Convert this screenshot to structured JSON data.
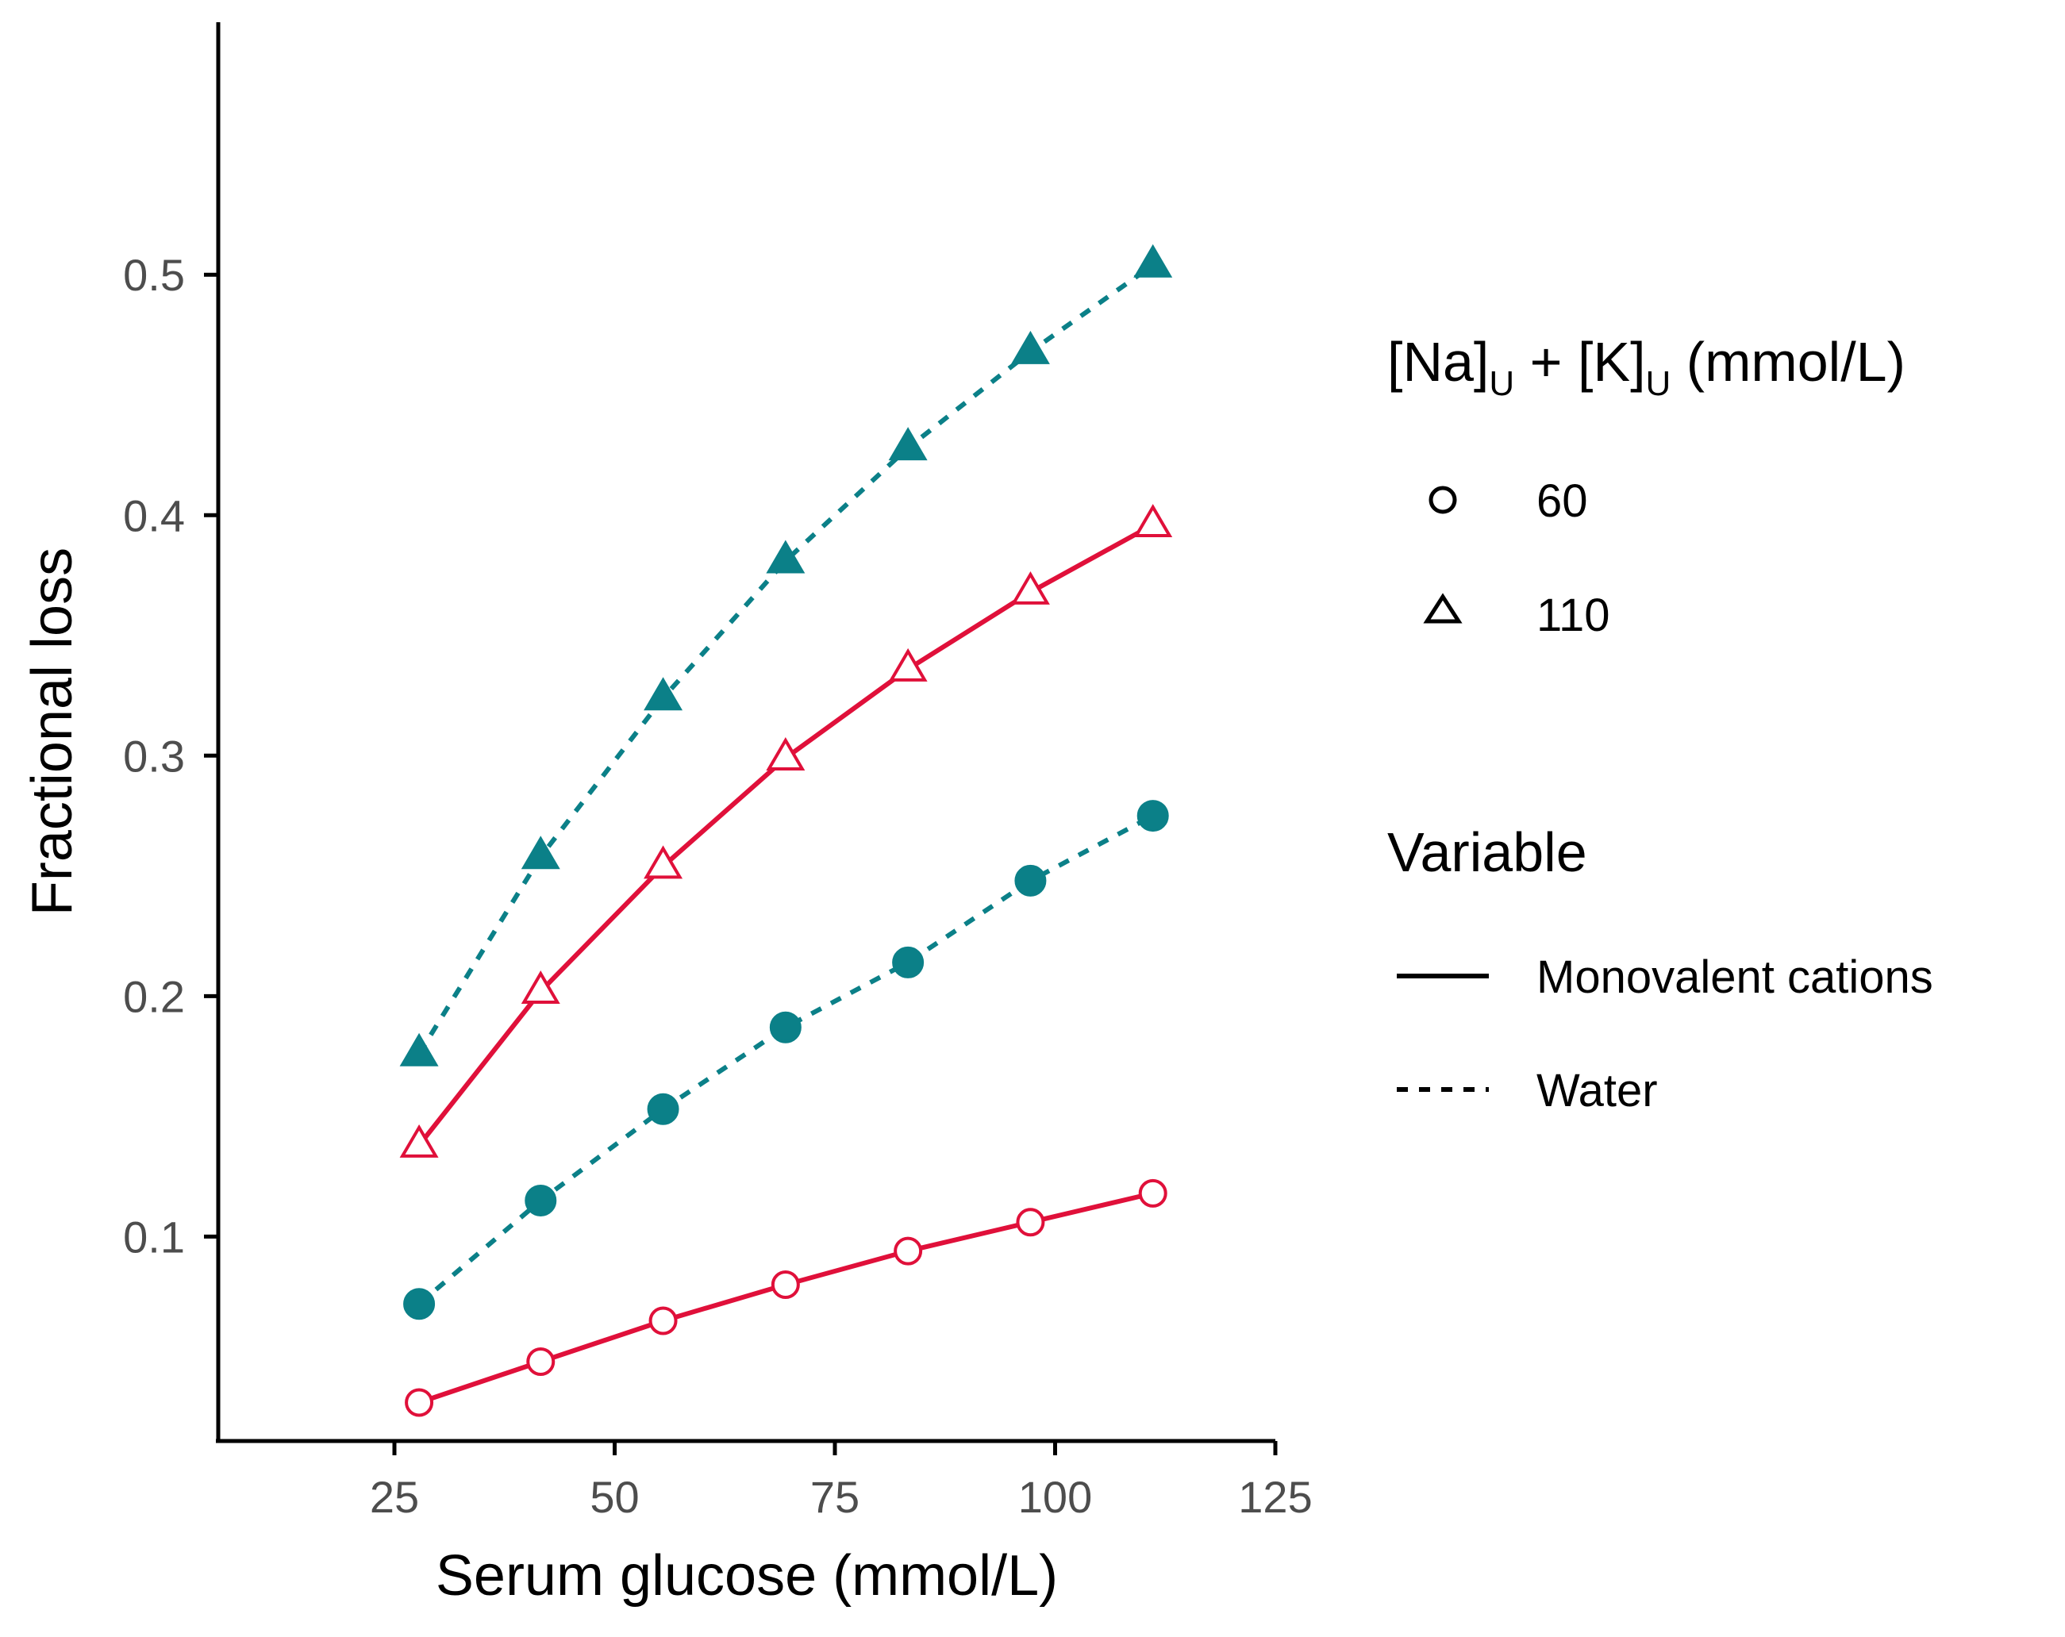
{
  "chart_data": {
    "type": "line",
    "xlabel": "Serum glucose (mmol/L)",
    "ylabel": "Fractional loss",
    "xlim": [
      5,
      125
    ],
    "ylim": [
      0.015,
      0.605
    ],
    "x_ticks": [
      25,
      50,
      75,
      100,
      125
    ],
    "y_ticks": [
      0.1,
      0.2,
      0.3,
      0.4,
      0.5
    ],
    "x_tick_labels": [
      "25",
      "50",
      "75",
      "100",
      "125"
    ],
    "y_tick_labels": [
      "0.1",
      "0.2",
      "0.3",
      "0.4",
      "0.5"
    ],
    "grid": false,
    "x": [
      27.8,
      41.6,
      55.5,
      69.4,
      83.3,
      97.2,
      111.1
    ],
    "series": [
      {
        "name": "Water, 110",
        "variable": "Water",
        "concentration": "110",
        "values": [
          0.176,
          0.258,
          0.324,
          0.381,
          0.428,
          0.468,
          0.504
        ]
      },
      {
        "name": "Monovalent cations, 110",
        "variable": "Monovalent cations",
        "concentration": "110",
        "values": [
          0.138,
          0.202,
          0.254,
          0.299,
          0.336,
          0.368,
          0.396
        ]
      },
      {
        "name": "Water, 60",
        "variable": "Water",
        "concentration": "60",
        "values": [
          0.072,
          0.115,
          0.153,
          0.187,
          0.214,
          0.248,
          0.275
        ]
      },
      {
        "name": "Monovalent cations, 60",
        "variable": "Monovalent cations",
        "concentration": "60",
        "values": [
          0.031,
          0.048,
          0.065,
          0.08,
          0.094,
          0.106,
          0.118
        ]
      }
    ],
    "legend": {
      "placement": "right",
      "shape_title": {
        "part1": "[Na]",
        "sub1": "U",
        "part2": " + [K]",
        "sub2": "U",
        "part3": " (mmol/L)"
      },
      "shape_entries": [
        {
          "label": "60",
          "shape": "circle-open-icon"
        },
        {
          "label": "110",
          "shape": "triangle-open-icon"
        }
      ],
      "linetype_title": "Variable",
      "linetype_entries": [
        {
          "label": "Monovalent cations",
          "linetype": "solid"
        },
        {
          "label": "Water",
          "linetype": "dashed"
        }
      ]
    }
  },
  "colors": {
    "Monovalent cations": "#e0103a",
    "Water": "#0b8088",
    "axis": "#000000",
    "tick_label": "#4d4d4d"
  }
}
